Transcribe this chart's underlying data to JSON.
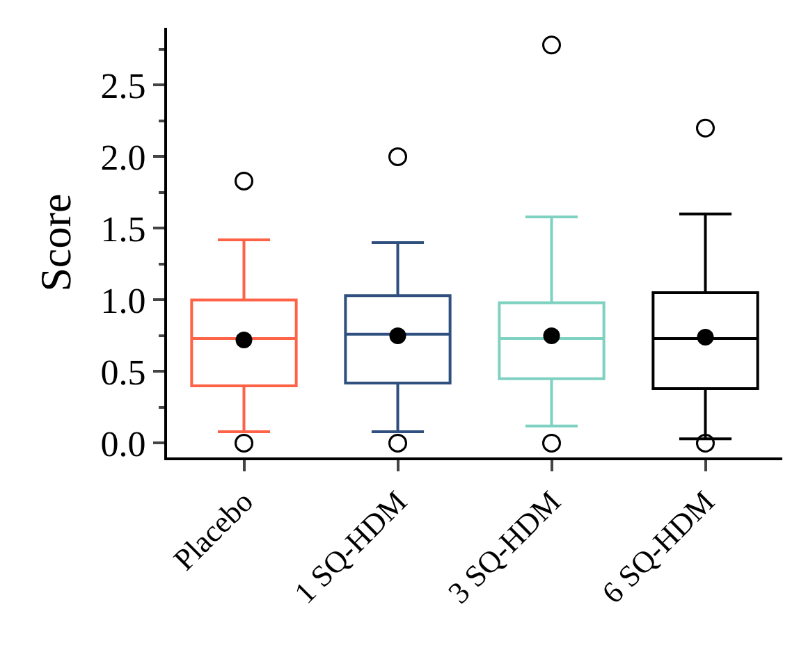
{
  "chart_data": {
    "type": "box",
    "ylabel": "Score",
    "categories": [
      "Placebo",
      "1 SQ-HDM",
      "3 SQ-HDM",
      "6 SQ-HDM"
    ],
    "colors": [
      "#ff6347",
      "#2f4f7f",
      "#7fd1c1",
      "#000000"
    ],
    "boxes": [
      {
        "low": 0.08,
        "q1": 0.4,
        "median": 0.73,
        "q3": 1.0,
        "high": 1.42,
        "mean": 0.72,
        "outliers": [
          1.83,
          0
        ]
      },
      {
        "low": 0.08,
        "q1": 0.42,
        "median": 0.76,
        "q3": 1.03,
        "high": 1.4,
        "mean": 0.75,
        "outliers": [
          2.0,
          0
        ]
      },
      {
        "low": 0.12,
        "q1": 0.45,
        "median": 0.73,
        "q3": 0.98,
        "high": 1.58,
        "mean": 0.75,
        "outliers": [
          2.78,
          0
        ]
      },
      {
        "low": 0.03,
        "q1": 0.38,
        "median": 0.73,
        "q3": 1.05,
        "high": 1.6,
        "mean": 0.74,
        "outliers": [
          2.2,
          0
        ]
      }
    ],
    "ylim": [
      -0.1,
      2.9
    ],
    "yticks": [
      {
        "value": 0,
        "label": "0.0"
      },
      0.5,
      {
        "value": 1,
        "label": "1.0"
      },
      1.5,
      {
        "value": 2,
        "label": "2.0"
      },
      2.5
    ],
    "grid": false
  }
}
